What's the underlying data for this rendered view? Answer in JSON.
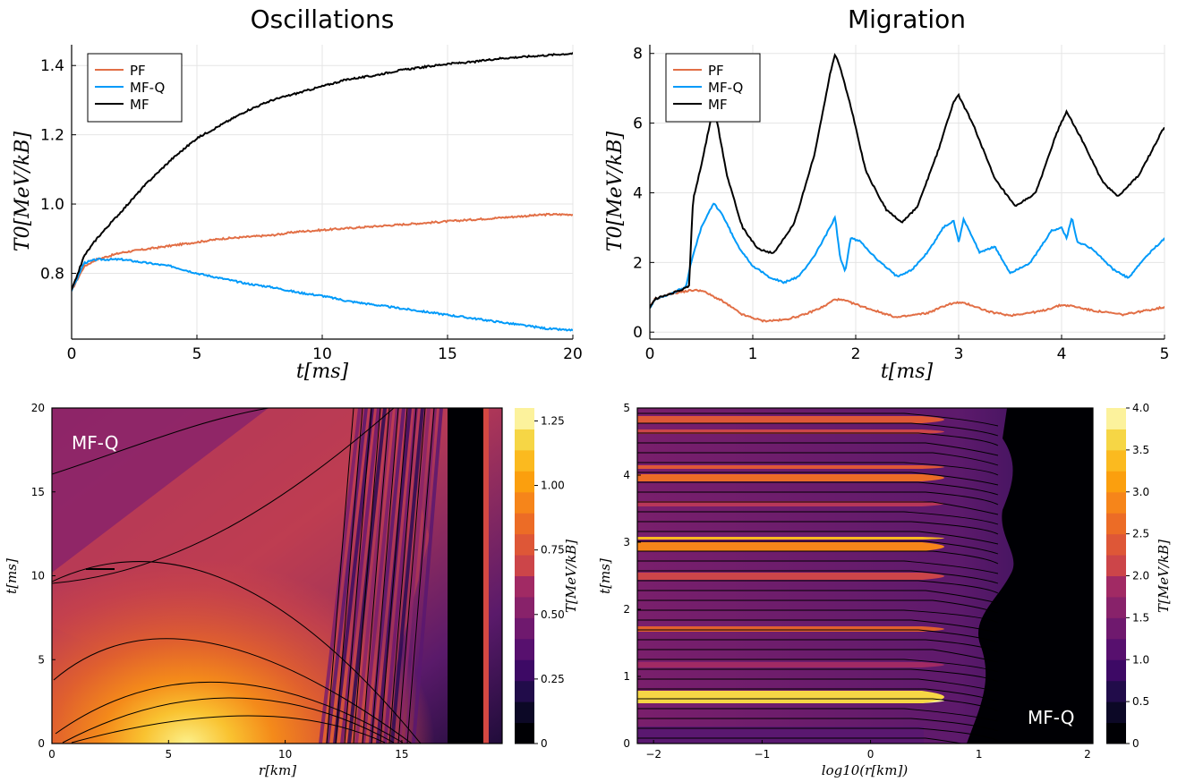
{
  "chart_data": [
    {
      "type": "line",
      "title": "Oscillations",
      "xlabel": "t[ms]",
      "ylabel": "T0[MeV/kB]",
      "xlim": [
        0,
        20
      ],
      "ylim": [
        0.61,
        1.46
      ],
      "xticks": [
        "0",
        "5",
        "10",
        "15",
        "20"
      ],
      "yticks": [
        "0.8",
        "1.0",
        "1.2",
        "1.4"
      ],
      "grid": true,
      "legend": "top-left",
      "series": [
        {
          "name": "PF",
          "color": "#e26f46",
          "x": [
            0,
            0.5,
            1,
            1.5,
            2,
            3,
            4,
            5,
            6,
            7,
            8,
            9,
            10,
            11,
            12,
            13,
            14,
            15,
            16,
            17,
            18,
            19,
            20
          ],
          "y": [
            0.75,
            0.82,
            0.84,
            0.85,
            0.86,
            0.87,
            0.88,
            0.89,
            0.9,
            0.905,
            0.91,
            0.92,
            0.925,
            0.93,
            0.935,
            0.94,
            0.945,
            0.95,
            0.955,
            0.96,
            0.965,
            0.97,
            0.97
          ]
        },
        {
          "name": "MF-Q",
          "color": "#009af9",
          "x": [
            0,
            0.5,
            1,
            1.5,
            2,
            3,
            4,
            5,
            6,
            7,
            8,
            9,
            10,
            11,
            12,
            13,
            14,
            15,
            16,
            17,
            18,
            19,
            20
          ],
          "y": [
            0.75,
            0.83,
            0.84,
            0.84,
            0.84,
            0.83,
            0.82,
            0.8,
            0.785,
            0.77,
            0.76,
            0.745,
            0.735,
            0.72,
            0.71,
            0.7,
            0.69,
            0.68,
            0.67,
            0.66,
            0.65,
            0.64,
            0.635
          ]
        },
        {
          "name": "MF",
          "color": "#000000",
          "x": [
            0,
            0.5,
            1,
            1.5,
            2,
            3,
            4,
            5,
            6,
            7,
            8,
            9,
            10,
            11,
            12,
            13,
            14,
            15,
            16,
            17,
            18,
            19,
            20
          ],
          "y": [
            0.75,
            0.85,
            0.9,
            0.94,
            0.98,
            1.06,
            1.13,
            1.19,
            1.23,
            1.27,
            1.3,
            1.32,
            1.34,
            1.36,
            1.37,
            1.385,
            1.395,
            1.405,
            1.41,
            1.42,
            1.425,
            1.43,
            1.435
          ]
        }
      ]
    },
    {
      "type": "line",
      "title": "Migration",
      "xlabel": "t[ms]",
      "ylabel": "T0[MeV/kB]",
      "xlim": [
        0,
        5
      ],
      "ylim": [
        -0.2,
        8.25
      ],
      "xticks": [
        "0",
        "1",
        "2",
        "3",
        "4",
        "5"
      ],
      "yticks": [
        "0",
        "2",
        "4",
        "6",
        "8"
      ],
      "grid": true,
      "legend": "top-left",
      "series": [
        {
          "name": "PF",
          "color": "#e26f46",
          "x": [
            0,
            0.05,
            0.2,
            0.4,
            0.5,
            0.7,
            0.9,
            1.1,
            1.3,
            1.5,
            1.7,
            1.8,
            1.9,
            2.1,
            2.4,
            2.7,
            2.9,
            3.0,
            3.1,
            3.3,
            3.5,
            3.8,
            4.0,
            4.1,
            4.3,
            4.6,
            5.0
          ],
          "y": [
            0.7,
            0.95,
            1.1,
            1.2,
            1.2,
            0.9,
            0.5,
            0.32,
            0.35,
            0.5,
            0.75,
            0.95,
            0.9,
            0.7,
            0.42,
            0.55,
            0.8,
            0.85,
            0.8,
            0.58,
            0.48,
            0.6,
            0.78,
            0.75,
            0.62,
            0.5,
            0.72
          ]
        },
        {
          "name": "MF-Q",
          "color": "#009af9",
          "x": [
            0,
            0.05,
            0.2,
            0.35,
            0.4,
            0.5,
            0.62,
            0.7,
            0.85,
            1.0,
            1.15,
            1.3,
            1.45,
            1.6,
            1.75,
            1.8,
            1.85,
            1.9,
            1.95,
            2.05,
            2.2,
            2.4,
            2.55,
            2.7,
            2.85,
            2.95,
            3.0,
            3.05,
            3.2,
            3.35,
            3.5,
            3.7,
            3.9,
            4.0,
            4.05,
            4.1,
            4.15,
            4.3,
            4.5,
            4.65,
            4.8,
            5.0
          ],
          "y": [
            0.7,
            0.95,
            1.1,
            1.3,
            2.0,
            3.0,
            3.7,
            3.4,
            2.5,
            1.9,
            1.6,
            1.42,
            1.6,
            2.2,
            3.0,
            3.3,
            2.1,
            1.75,
            2.7,
            2.6,
            2.1,
            1.6,
            1.8,
            2.3,
            3.0,
            3.2,
            2.6,
            3.25,
            2.3,
            2.45,
            1.7,
            2.0,
            2.9,
            3.0,
            2.7,
            3.3,
            2.6,
            2.4,
            1.8,
            1.55,
            2.1,
            2.7
          ]
        },
        {
          "name": "MF",
          "color": "#000000",
          "x": [
            0,
            0.05,
            0.2,
            0.38,
            0.42,
            0.5,
            0.6,
            0.65,
            0.75,
            0.9,
            1.05,
            1.2,
            1.4,
            1.6,
            1.75,
            1.8,
            1.85,
            1.95,
            2.1,
            2.3,
            2.45,
            2.6,
            2.8,
            2.95,
            3.0,
            3.15,
            3.35,
            3.55,
            3.75,
            3.95,
            4.05,
            4.2,
            4.4,
            4.55,
            4.75,
            5.0
          ],
          "y": [
            0.7,
            0.95,
            1.1,
            1.3,
            3.8,
            4.8,
            6.2,
            6.1,
            4.5,
            3.0,
            2.4,
            2.25,
            3.1,
            5.1,
            7.4,
            8.0,
            7.6,
            6.5,
            4.6,
            3.5,
            3.15,
            3.6,
            5.2,
            6.6,
            6.8,
            5.9,
            4.4,
            3.6,
            4.0,
            5.7,
            6.35,
            5.5,
            4.3,
            3.9,
            4.5,
            5.9
          ]
        }
      ]
    },
    {
      "type": "heatmap",
      "label": "MF-Q",
      "xlabel": "r[km]",
      "ylabel": "t[ms]",
      "xlim": [
        0,
        19.3
      ],
      "ylim": [
        0,
        20
      ],
      "xticks": [
        "0",
        "5",
        "10",
        "15"
      ],
      "yticks": [
        "0",
        "5",
        "10",
        "15",
        "20"
      ],
      "colorbar_label": "T[MeV/kB]",
      "colorbar_range": [
        0,
        1.3
      ],
      "colorbar_ticks": [
        "0",
        "0.25",
        "0.50",
        "0.75",
        "1.00",
        "1.25"
      ],
      "levels": 16
    },
    {
      "type": "heatmap",
      "label": "MF-Q",
      "xlabel": "log10(r[km])",
      "ylabel": "t[ms]",
      "xlim": [
        -2.15,
        2.05
      ],
      "ylim": [
        0,
        5
      ],
      "xticks": [
        "−2",
        "−1",
        "0",
        "1",
        "2"
      ],
      "yticks": [
        "0",
        "1",
        "2",
        "3",
        "4",
        "5"
      ],
      "colorbar_label": "T[MeV/kB]",
      "colorbar_range": [
        0,
        4.0
      ],
      "colorbar_ticks": [
        "0",
        "0.5",
        "1.0",
        "1.5",
        "2.0",
        "2.5",
        "3.0",
        "3.5",
        "4.0"
      ],
      "levels": 16
    }
  ]
}
